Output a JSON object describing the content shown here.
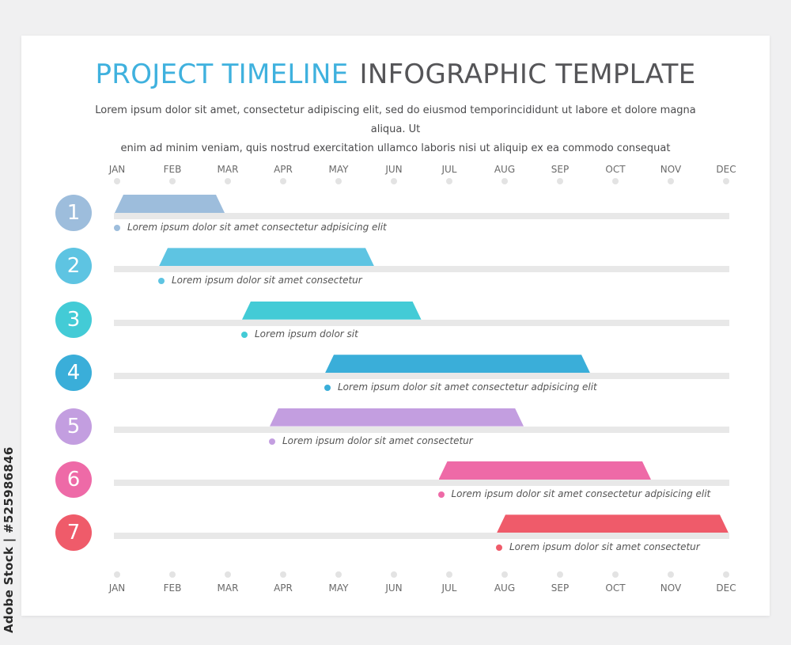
{
  "title": {
    "part1": "PROJECT TIMELINE",
    "part2": "INFOGRAPHIC TEMPLATE"
  },
  "subtitle": [
    "Lorem ipsum dolor sit amet, consectetur adipiscing elit, sed do eiusmod temporincididunt ut labore et dolore magna aliqua. Ut",
    "enim ad minim veniam, quis nostrud exercitation ullamco laboris nisi ut aliquip ex ea commodo consequat"
  ],
  "months": [
    "JAN",
    "FEB",
    "MAR",
    "APR",
    "MAY",
    "JUN",
    "JUL",
    "AUG",
    "SEP",
    "OCT",
    "NOV",
    "DEC"
  ],
  "tasks": [
    {
      "number": "1",
      "color": "#9dbddc",
      "start_month": 0.0,
      "end_month": 1.9,
      "caption": "Lorem ipsum dolor sit amet consectetur adpisicing elit"
    },
    {
      "number": "2",
      "color": "#5ec4e2",
      "start_month": 0.8,
      "end_month": 4.6,
      "caption": "Lorem ipsum dolor sit amet consectetur"
    },
    {
      "number": "3",
      "color": "#43cbd6",
      "start_month": 2.3,
      "end_month": 5.45,
      "caption": "Lorem ipsum dolor sit"
    },
    {
      "number": "4",
      "color": "#3aaed9",
      "start_month": 3.8,
      "end_month": 8.5,
      "caption": "Lorem ipsum dolor sit amet consectetur adpisicing elit"
    },
    {
      "number": "5",
      "color": "#c39ee0",
      "start_month": 2.8,
      "end_month": 7.3,
      "caption": "Lorem ipsum dolor sit amet consectetur"
    },
    {
      "number": "6",
      "color": "#ee6aa7",
      "start_month": 5.85,
      "end_month": 9.6,
      "caption": "Lorem ipsum dolor sit amet consectetur adpisicing elit"
    },
    {
      "number": "7",
      "color": "#ef5b6a",
      "start_month": 6.9,
      "end_month": 11.0,
      "caption": "Lorem ipsum dolor sit amet consectetur"
    }
  ],
  "watermark": "Adobe Stock | #525986846"
}
